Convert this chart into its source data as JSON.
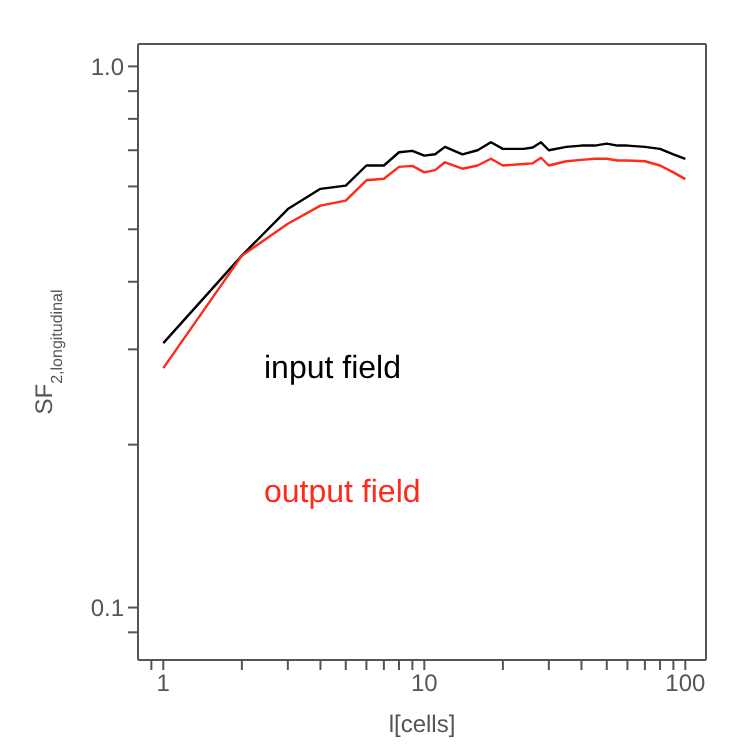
{
  "chart_data": {
    "type": "line",
    "xlabel": "l[cells]",
    "ylabel": "SF$_{2,longitudinal}$",
    "log": "xy",
    "xlim": [
      0.8,
      120
    ],
    "ylim": [
      0.08,
      1.1
    ],
    "xticks": [
      {
        "value": 0.9,
        "label": null
      },
      1,
      {
        "value": 2,
        "label": null
      },
      {
        "value": 3,
        "label": null
      },
      {
        "value": 4,
        "label": null
      },
      {
        "value": 5,
        "label": null
      },
      {
        "value": 6,
        "label": null
      },
      {
        "value": 7,
        "label": null
      },
      {
        "value": 8,
        "label": null
      },
      {
        "value": 9,
        "label": null
      },
      10,
      {
        "value": 20,
        "label": null
      },
      {
        "value": 30,
        "label": null
      },
      {
        "value": 40,
        "label": null
      },
      {
        "value": 50,
        "label": null
      },
      {
        "value": 60,
        "label": null
      },
      {
        "value": 70,
        "label": null
      },
      {
        "value": 80,
        "label": null
      },
      {
        "value": 90,
        "label": null
      },
      100
    ],
    "yticks": [
      {
        "value": 0.09,
        "label": null
      },
      {
        "value": 0.1,
        "label": "0.1"
      },
      {
        "value": 0.2,
        "label": null
      },
      {
        "value": 0.3,
        "label": null
      },
      {
        "value": 0.4,
        "label": null
      },
      {
        "value": 0.5,
        "label": null
      },
      {
        "value": 0.6,
        "label": null
      },
      {
        "value": 0.7,
        "label": null
      },
      {
        "value": 0.8,
        "label": null
      },
      {
        "value": 0.9,
        "label": null
      },
      {
        "value": 1,
        "label": "1.0"
      }
    ],
    "x": [
      1,
      2,
      3,
      4,
      5,
      6,
      7,
      8,
      9,
      10,
      11,
      12,
      14,
      16,
      18,
      20,
      24,
      26,
      28,
      30,
      35,
      40,
      45,
      50,
      55,
      60,
      70,
      80,
      90,
      100
    ],
    "legend": "left",
    "marker": "none",
    "line_style": "solid",
    "series": [
      {
        "name": "input field",
        "color": "#000000",
        "values": [
          0.308,
          0.447,
          0.545,
          0.594,
          0.602,
          0.656,
          0.656,
          0.694,
          0.698,
          0.684,
          0.688,
          0.71,
          0.688,
          0.7,
          0.724,
          0.704,
          0.704,
          0.708,
          0.724,
          0.7,
          0.71,
          0.714,
          0.714,
          0.72,
          0.714,
          0.714,
          0.71,
          0.704,
          0.688,
          0.675
        ]
      },
      {
        "name": "output field",
        "color": "#ff2a1a",
        "values": [
          0.277,
          0.447,
          0.512,
          0.553,
          0.565,
          0.616,
          0.62,
          0.652,
          0.655,
          0.637,
          0.643,
          0.665,
          0.647,
          0.656,
          0.675,
          0.656,
          0.66,
          0.662,
          0.678,
          0.656,
          0.668,
          0.672,
          0.675,
          0.675,
          0.67,
          0.67,
          0.668,
          0.656,
          0.637,
          0.619
        ]
      }
    ]
  }
}
